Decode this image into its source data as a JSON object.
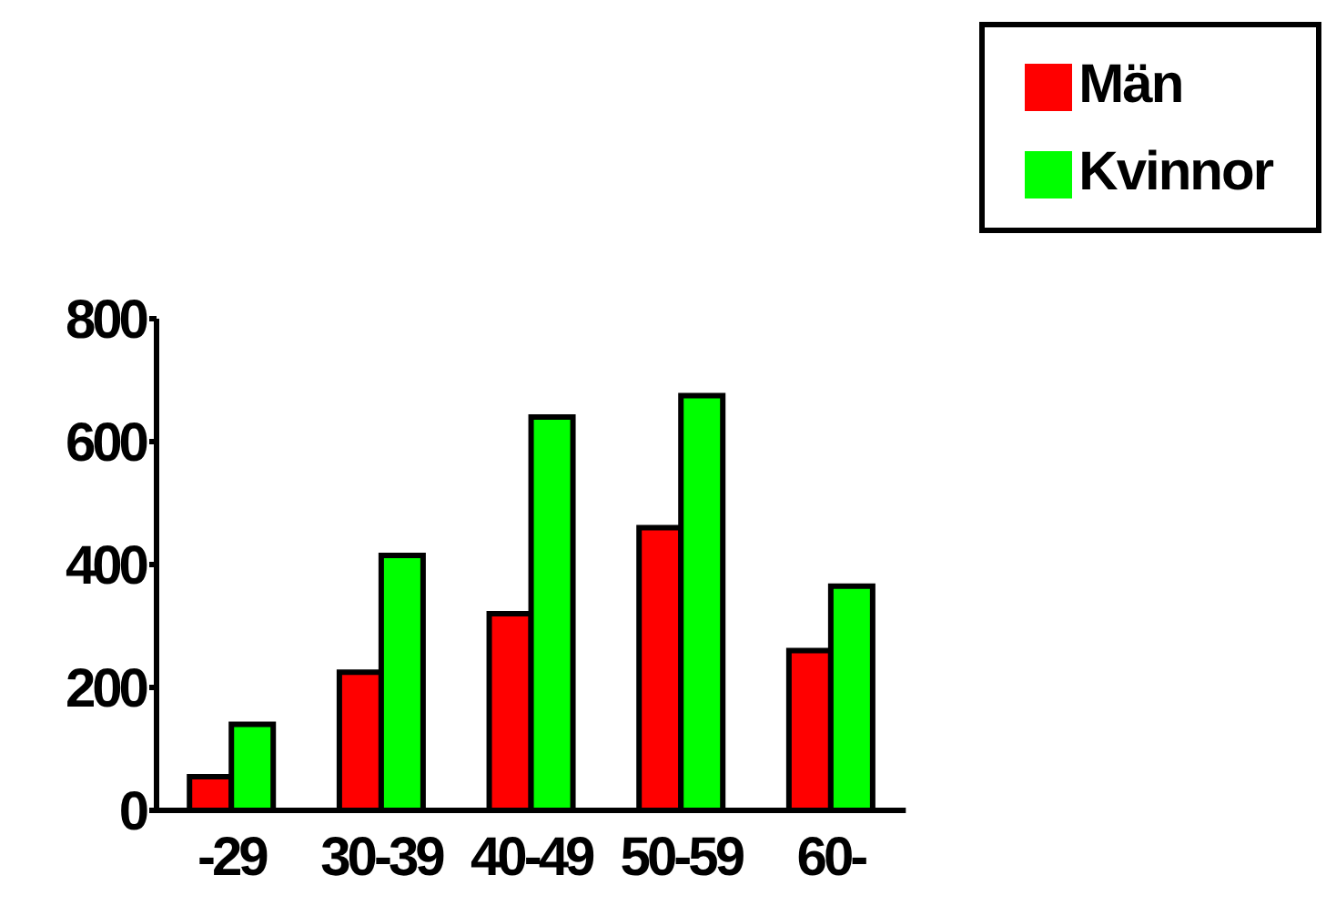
{
  "chart_data": {
    "type": "bar",
    "categories": [
      "-29",
      "30-39",
      "40-49",
      "50-59",
      "60-"
    ],
    "series": [
      {
        "name": "Män",
        "color": "#ff0000",
        "values": [
          55,
          225,
          320,
          460,
          260
        ]
      },
      {
        "name": "Kvinnor",
        "color": "#00ff00",
        "values": [
          140,
          415,
          640,
          675,
          365
        ]
      }
    ],
    "ylim": [
      0,
      800
    ],
    "yticks": [
      0,
      200,
      400,
      600,
      800
    ],
    "grid": false,
    "legend": "top right"
  }
}
